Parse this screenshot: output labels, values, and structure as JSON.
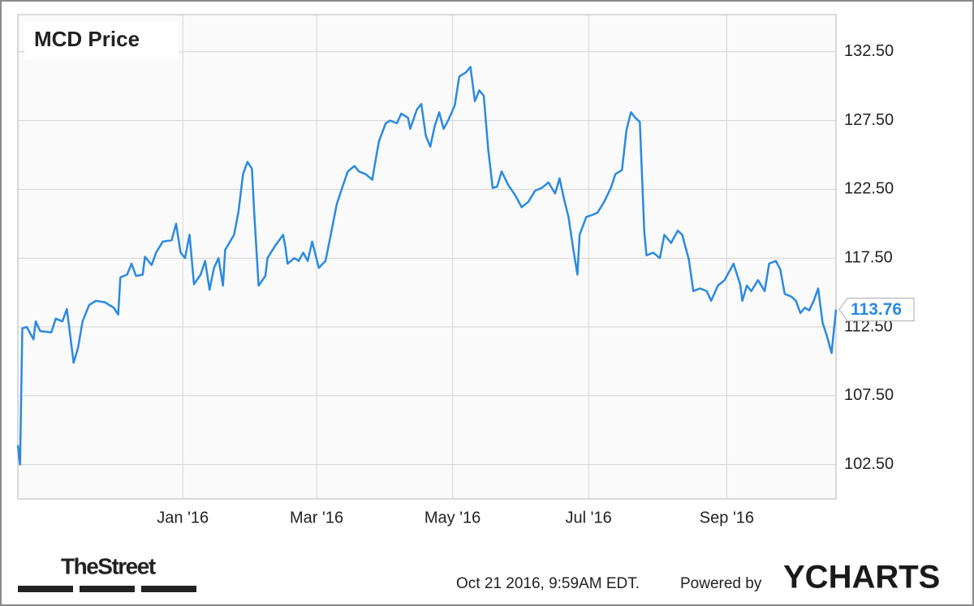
{
  "chart_data": {
    "type": "line",
    "title": "MCD Price",
    "x": [
      0,
      1,
      2,
      4,
      7,
      8,
      10,
      15,
      17,
      20,
      22,
      25,
      27,
      29,
      32,
      35,
      39,
      43,
      45,
      46,
      49,
      51,
      53,
      56,
      57,
      60,
      62,
      65,
      69,
      71,
      73,
      75,
      77,
      79,
      82,
      84,
      86,
      88,
      90,
      92,
      93,
      97,
      99,
      101,
      103,
      105,
      106,
      108,
      111,
      112,
      115,
      119,
      120,
      121,
      124,
      126,
      128,
      130,
      132,
      135,
      138,
      140,
      143,
      145,
      148,
      151,
      153,
      156,
      159,
      160,
      162,
      165,
      167,
      170,
      172,
      175,
      176,
      179,
      181,
      183,
      185,
      187,
      189,
      191,
      193,
      196,
      198,
      201,
      203,
      205,
      207,
      209,
      211,
      213,
      215,
      217,
      220,
      223,
      226,
      229,
      232,
      235,
      238,
      241,
      243,
      245,
      247,
      249,
      251,
      252,
      255,
      257,
      260,
      263,
      266,
      268,
      271,
      273,
      275,
      277,
      279,
      281,
      282,
      285,
      288,
      290,
      293,
      296,
      298,
      301,
      303,
      306,
      309,
      311,
      314,
      317,
      319,
      321,
      324,
      325,
      327,
      329,
      332,
      335,
      337,
      340,
      342,
      344,
      347,
      349,
      351,
      353,
      355,
      357,
      359,
      361,
      363,
      365,
      367
    ],
    "series": [
      {
        "name": "MCD Price",
        "color": "#2a8ae2",
        "values": [
          103.9,
          102.5,
          112.4,
          112.5,
          111.6,
          112.9,
          112.2,
          112.1,
          113.1,
          112.9,
          113.8,
          109.9,
          111.0,
          112.9,
          114.1,
          114.4,
          114.3,
          113.9,
          113.4,
          116.1,
          116.3,
          117.1,
          116.2,
          116.3,
          117.6,
          117.0,
          117.9,
          118.7,
          118.8,
          120.0,
          117.9,
          117.5,
          119.2,
          115.6,
          116.3,
          117.3,
          115.2,
          116.8,
          117.5,
          115.5,
          118.1,
          119.2,
          120.9,
          123.6,
          124.5,
          124.0,
          120.9,
          115.5,
          116.2,
          117.5,
          118.3,
          119.2,
          118.3,
          117.1,
          117.5,
          117.3,
          117.9,
          117.3,
          118.7,
          116.8,
          117.3,
          118.9,
          121.4,
          122.4,
          123.8,
          124.2,
          123.8,
          123.6,
          123.2,
          124.2,
          126.0,
          127.3,
          127.5,
          127.3,
          128.0,
          127.7,
          126.9,
          128.3,
          128.7,
          126.4,
          125.6,
          127.1,
          128.1,
          126.9,
          127.5,
          128.6,
          130.7,
          131.0,
          131.4,
          128.9,
          129.7,
          129.3,
          125.4,
          122.6,
          122.7,
          123.8,
          122.8,
          122.1,
          121.2,
          121.6,
          122.4,
          122.6,
          123.0,
          122.2,
          123.3,
          121.8,
          120.5,
          118.3,
          116.3,
          119.2,
          120.5,
          120.6,
          120.8,
          121.6,
          122.6,
          123.6,
          123.9,
          126.8,
          128.1,
          127.7,
          127.4,
          119.4,
          117.7,
          117.9,
          117.5,
          119.2,
          118.6,
          119.5,
          119.2,
          117.4,
          115.1,
          115.3,
          115.1,
          114.4,
          115.5,
          115.9,
          116.5,
          117.1,
          115.6,
          114.4,
          115.5,
          115.1,
          115.9,
          115.1,
          117.1,
          117.3,
          116.7,
          114.9,
          114.7,
          114.4,
          113.5,
          113.9,
          113.7,
          114.4,
          115.3,
          112.8,
          111.8,
          110.6,
          113.76
        ]
      }
    ],
    "last_value": {
      "value": 113.76,
      "label": "113.76"
    },
    "xlim": [
      0,
      367
    ],
    "xticks": [
      {
        "value": 74,
        "label": "Jan '16"
      },
      {
        "value": 134,
        "label": "Mar '16"
      },
      {
        "value": 195,
        "label": "May '16"
      },
      {
        "value": 256,
        "label": "Jul '16"
      },
      {
        "value": 318,
        "label": "Sep '16"
      }
    ],
    "ylim": [
      100,
      135.2
    ],
    "yticks": [
      {
        "value": 102.5,
        "label": "102.50"
      },
      {
        "value": 107.5,
        "label": "107.50"
      },
      {
        "value": 112.5,
        "label": "112.50"
      },
      {
        "value": 117.5,
        "label": "117.50"
      },
      {
        "value": 122.5,
        "label": "122.50"
      },
      {
        "value": 127.5,
        "label": "127.50"
      },
      {
        "value": 132.5,
        "label": "132.50"
      }
    ],
    "grid": true
  },
  "footer": {
    "publisher": "TheStreet",
    "timestamp": "Oct 21 2016, 9:59AM EDT.",
    "powered_by": "Powered by",
    "brand": "YCHARTS"
  }
}
